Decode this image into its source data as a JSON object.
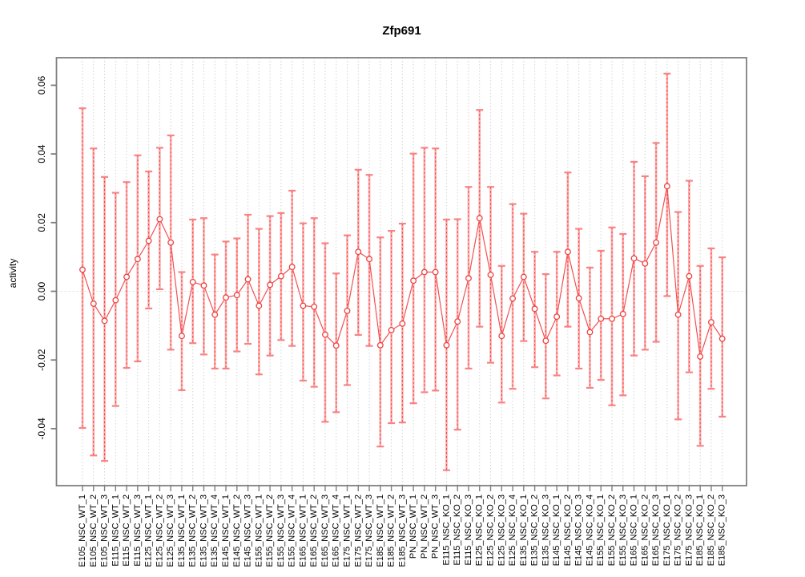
{
  "title": "Zfp691",
  "chart_data": {
    "type": "line",
    "subtype": "points-with-error-bars",
    "title": "Zfp691",
    "xlabel": "",
    "ylabel": "activity",
    "legend": "none",
    "grid": "vertical dotted line per category; dotted horizontal line at y=0",
    "ylim": [
      -0.0566,
      0.068
    ],
    "y_ticks": [
      {
        "value": 0.06,
        "label": "0.06"
      },
      {
        "value": 0.04,
        "label": "0.04"
      },
      {
        "value": 0.02,
        "label": "0.02"
      },
      {
        "value": 0.0,
        "label": "0.00"
      },
      {
        "value": -0.02,
        "label": "-0.02"
      },
      {
        "value": -0.04,
        "label": "-0.04"
      }
    ],
    "categories": [
      "E105_NSC_WT_1",
      "E105_NSC_WT_2",
      "E105_NSC_WT_3",
      "E115_NSC_WT_1",
      "E115_NSC_WT_2",
      "E115_NSC_WT_3",
      "E125_NSC_WT_1",
      "E125_NSC_WT_2",
      "E125_NSC_WT_3",
      "E135_NSC_WT_1",
      "E135_NSC_WT_2",
      "E135_NSC_WT_3",
      "E135_NSC_WT_4",
      "E145_NSC_WT_1",
      "E145_NSC_WT_2",
      "E145_NSC_WT_3",
      "E155_NSC_WT_1",
      "E155_NSC_WT_2",
      "E155_NSC_WT_3",
      "E155_NSC_WT_4",
      "E165_NSC_WT_1",
      "E165_NSC_WT_2",
      "E165_NSC_WT_3",
      "E165_NSC_WT_4",
      "E175_NSC_WT_1",
      "E175_NSC_WT_2",
      "E175_NSC_WT_3",
      "E185_NSC_WT_1",
      "E185_NSC_WT_2",
      "E185_NSC_WT_3",
      "PN_NSC_WT_1",
      "PN_NSC_WT_2",
      "PN_NSC_WT_3",
      "E115_NSC_KO_1",
      "E115_NSC_KO_2",
      "E115_NSC_KO_3",
      "E125_NSC_KO_1",
      "E125_NSC_KO_2",
      "E125_NSC_KO_3",
      "E125_NSC_KO_4",
      "E135_NSC_KO_1",
      "E135_NSC_KO_2",
      "E135_NSC_KO_3",
      "E145_NSC_KO_1",
      "E145_NSC_KO_2",
      "E145_NSC_KO_3",
      "E145_NSC_KO_4",
      "E155_NSC_KO_1",
      "E155_NSC_KO_2",
      "E155_NSC_KO_3",
      "E165_NSC_KO_1",
      "E165_NSC_KO_2",
      "E165_NSC_KO_3",
      "E175_NSC_KO_1",
      "E175_NSC_KO_2",
      "E175_NSC_KO_3",
      "E185_NSC_KO_1",
      "E185_NSC_KO_2",
      "E185_NSC_KO_3"
    ],
    "series": [
      {
        "name": "activity_mean",
        "values": [
          0.0063,
          -0.0036,
          -0.0086,
          -0.0026,
          0.0042,
          0.0094,
          0.0147,
          0.021,
          0.0142,
          -0.013,
          0.0027,
          0.0017,
          -0.0068,
          -0.0018,
          -0.0011,
          0.0035,
          -0.0042,
          0.0019,
          0.0044,
          0.0071,
          -0.0042,
          -0.0045,
          -0.0126,
          -0.0158,
          -0.0057,
          0.0115,
          0.0094,
          -0.0157,
          -0.0113,
          -0.0094,
          0.0031,
          0.0056,
          0.0056,
          -0.0157,
          -0.0088,
          0.0038,
          0.0213,
          0.0048,
          -0.013,
          -0.0021,
          0.0042,
          -0.0051,
          -0.0144,
          -0.0074,
          0.0115,
          -0.002,
          -0.0119,
          -0.008,
          -0.008,
          -0.0066,
          0.0096,
          0.0081,
          0.0142,
          0.0306,
          -0.0068,
          0.0044,
          -0.019,
          -0.009,
          -0.0138
        ]
      },
      {
        "name": "upper_bound",
        "values": [
          0.0533,
          0.0416,
          0.0333,
          0.0287,
          0.0318,
          0.0396,
          0.0349,
          0.0418,
          0.0454,
          0.0056,
          0.0209,
          0.0213,
          0.0107,
          0.0145,
          0.0154,
          0.0223,
          0.0182,
          0.0219,
          0.0228,
          0.0293,
          0.0198,
          0.0213,
          0.014,
          0.0052,
          0.0163,
          0.0354,
          0.0339,
          0.0157,
          0.0176,
          0.0197,
          0.0401,
          0.0418,
          0.0416,
          0.0209,
          0.021,
          0.0304,
          0.0528,
          0.0304,
          0.0074,
          0.0254,
          0.0226,
          0.0115,
          0.005,
          0.0115,
          0.0346,
          0.0182,
          0.0069,
          0.0118,
          0.0186,
          0.0167,
          0.0377,
          0.0335,
          0.0432,
          0.0634,
          0.0231,
          0.0322,
          0.0074,
          0.0125,
          0.0099
        ]
      },
      {
        "name": "lower_bound",
        "values": [
          -0.0398,
          -0.0478,
          -0.0494,
          -0.0334,
          -0.0223,
          -0.0204,
          -0.005,
          0.0006,
          -0.017,
          -0.0288,
          -0.0151,
          -0.0184,
          -0.0225,
          -0.0225,
          -0.0175,
          -0.0153,
          -0.0242,
          -0.0187,
          -0.0142,
          -0.0159,
          -0.026,
          -0.0278,
          -0.038,
          -0.0352,
          -0.0273,
          -0.0127,
          -0.0159,
          -0.0452,
          -0.0384,
          -0.0382,
          -0.0326,
          -0.0294,
          -0.0289,
          -0.0521,
          -0.0403,
          -0.0225,
          -0.0103,
          -0.0208,
          -0.0324,
          -0.0284,
          -0.0145,
          -0.0221,
          -0.0312,
          -0.0245,
          -0.0103,
          -0.0225,
          -0.0281,
          -0.0258,
          -0.0332,
          -0.0303,
          -0.0187,
          -0.017,
          -0.0147,
          -0.0014,
          -0.0373,
          -0.0236,
          -0.045,
          -0.0284,
          -0.0365
        ]
      }
    ],
    "colors": {
      "point_stroke": "#f04141",
      "connector_line": "#f35050",
      "error_bar_light": "#ffabab",
      "error_bar_dash": "#e84343",
      "error_cap": "#f88383",
      "gridline": "#d4d4d4",
      "zero_line": "#dcdcdc",
      "box": "#7f7f7f",
      "text": "#000000"
    }
  }
}
